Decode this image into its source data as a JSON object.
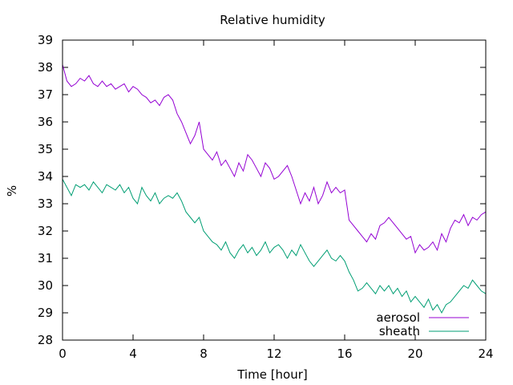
{
  "chart_data": {
    "type": "line",
    "title": "Relative humidity",
    "xlabel": "Time [hour]",
    "ylabel": "%",
    "xlim": [
      0,
      24
    ],
    "ylim": [
      28,
      39
    ],
    "xticks": [
      0,
      4,
      8,
      12,
      16,
      20,
      24
    ],
    "yticks": [
      28,
      29,
      30,
      31,
      32,
      33,
      34,
      35,
      36,
      37,
      38,
      39
    ],
    "grid": false,
    "legend_position": "bottom-right",
    "series": [
      {
        "name": "aerosol",
        "color": "#9400d3",
        "x": [
          0,
          0.25,
          0.5,
          0.75,
          1,
          1.25,
          1.5,
          1.75,
          2,
          2.25,
          2.5,
          2.75,
          3,
          3.25,
          3.5,
          3.75,
          4,
          4.25,
          4.5,
          4.75,
          5,
          5.25,
          5.5,
          5.75,
          6,
          6.25,
          6.5,
          6.75,
          7,
          7.25,
          7.5,
          7.75,
          8,
          8.25,
          8.5,
          8.75,
          9,
          9.25,
          9.5,
          9.75,
          10,
          10.25,
          10.5,
          10.75,
          11,
          11.25,
          11.5,
          11.75,
          12,
          12.25,
          12.5,
          12.75,
          13,
          13.25,
          13.5,
          13.75,
          14,
          14.25,
          14.5,
          14.75,
          15,
          15.25,
          15.5,
          15.75,
          16,
          16.25,
          16.5,
          16.75,
          17,
          17.25,
          17.5,
          17.75,
          18,
          18.25,
          18.5,
          18.75,
          19,
          19.25,
          19.5,
          19.75,
          20,
          20.25,
          20.5,
          20.75,
          21,
          21.25,
          21.5,
          21.75,
          22,
          22.25,
          22.5,
          22.75,
          23,
          23.25,
          23.5,
          23.75,
          24
        ],
        "values": [
          38.1,
          37.5,
          37.3,
          37.4,
          37.6,
          37.5,
          37.7,
          37.4,
          37.3,
          37.5,
          37.3,
          37.4,
          37.2,
          37.3,
          37.4,
          37.1,
          37.3,
          37.2,
          37.0,
          36.9,
          36.7,
          36.8,
          36.6,
          36.9,
          37.0,
          36.8,
          36.3,
          36.0,
          35.6,
          35.2,
          35.5,
          36.0,
          35.0,
          34.8,
          34.6,
          34.9,
          34.4,
          34.6,
          34.3,
          34.0,
          34.5,
          34.2,
          34.8,
          34.6,
          34.3,
          34.0,
          34.5,
          34.3,
          33.9,
          34.0,
          34.2,
          34.4,
          34.0,
          33.5,
          33.0,
          33.4,
          33.1,
          33.6,
          33.0,
          33.3,
          33.8,
          33.4,
          33.6,
          33.4,
          33.5,
          32.4,
          32.2,
          32.0,
          31.8,
          31.6,
          31.9,
          31.7,
          32.2,
          32.3,
          32.5,
          32.3,
          32.1,
          31.9,
          31.7,
          31.8,
          31.2,
          31.5,
          31.3,
          31.4,
          31.6,
          31.3,
          31.9,
          31.6,
          32.1,
          32.4,
          32.3,
          32.6,
          32.2,
          32.5,
          32.4,
          32.6,
          32.7
        ]
      },
      {
        "name": "sheath",
        "color": "#009e73",
        "x": [
          0,
          0.25,
          0.5,
          0.75,
          1,
          1.25,
          1.5,
          1.75,
          2,
          2.25,
          2.5,
          2.75,
          3,
          3.25,
          3.5,
          3.75,
          4,
          4.25,
          4.5,
          4.75,
          5,
          5.25,
          5.5,
          5.75,
          6,
          6.25,
          6.5,
          6.75,
          7,
          7.25,
          7.5,
          7.75,
          8,
          8.25,
          8.5,
          8.75,
          9,
          9.25,
          9.5,
          9.75,
          10,
          10.25,
          10.5,
          10.75,
          11,
          11.25,
          11.5,
          11.75,
          12,
          12.25,
          12.5,
          12.75,
          13,
          13.25,
          13.5,
          13.75,
          14,
          14.25,
          14.5,
          14.75,
          15,
          15.25,
          15.5,
          15.75,
          16,
          16.25,
          16.5,
          16.75,
          17,
          17.25,
          17.5,
          17.75,
          18,
          18.25,
          18.5,
          18.75,
          19,
          19.25,
          19.5,
          19.75,
          20,
          20.25,
          20.5,
          20.75,
          21,
          21.25,
          21.5,
          21.75,
          22,
          22.25,
          22.5,
          22.75,
          23,
          23.25,
          23.5,
          23.75,
          24
        ],
        "values": [
          33.9,
          33.6,
          33.3,
          33.7,
          33.6,
          33.7,
          33.5,
          33.8,
          33.6,
          33.4,
          33.7,
          33.6,
          33.5,
          33.7,
          33.4,
          33.6,
          33.2,
          33.0,
          33.6,
          33.3,
          33.1,
          33.4,
          33.0,
          33.2,
          33.3,
          33.2,
          33.4,
          33.1,
          32.7,
          32.5,
          32.3,
          32.5,
          32.0,
          31.8,
          31.6,
          31.5,
          31.3,
          31.6,
          31.2,
          31.0,
          31.3,
          31.5,
          31.2,
          31.4,
          31.1,
          31.3,
          31.6,
          31.2,
          31.4,
          31.5,
          31.3,
          31.0,
          31.3,
          31.1,
          31.5,
          31.2,
          30.9,
          30.7,
          30.9,
          31.1,
          31.3,
          31.0,
          30.9,
          31.1,
          30.9,
          30.5,
          30.2,
          29.8,
          29.9,
          30.1,
          29.9,
          29.7,
          30.0,
          29.8,
          30.0,
          29.7,
          29.9,
          29.6,
          29.8,
          29.4,
          29.6,
          29.4,
          29.2,
          29.5,
          29.1,
          29.3,
          29.0,
          29.3,
          29.4,
          29.6,
          29.8,
          30.0,
          29.9,
          30.2,
          30.0,
          29.8,
          29.7
        ]
      }
    ]
  }
}
